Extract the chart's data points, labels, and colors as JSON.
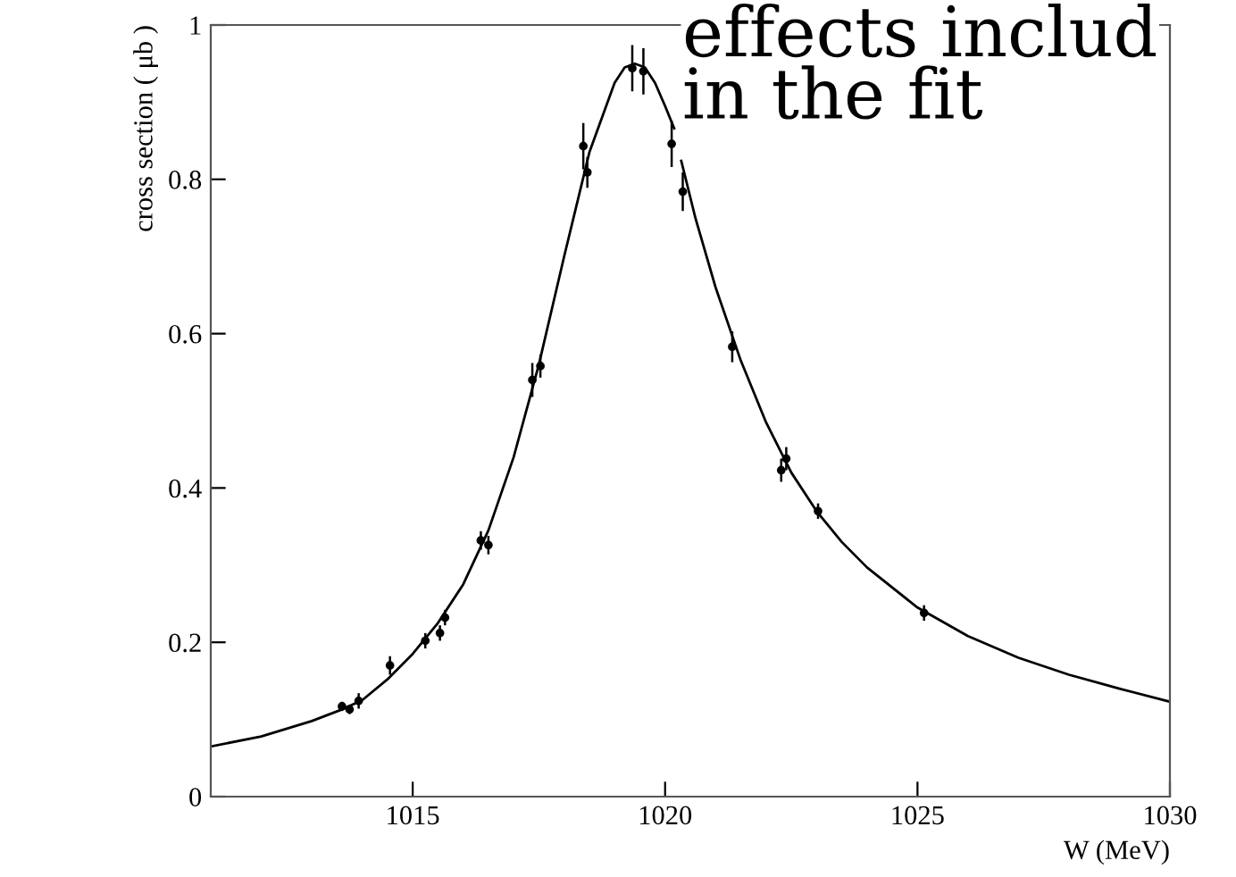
{
  "chart_data": {
    "type": "scatter",
    "xlabel": "W (MeV)",
    "ylabel": "cross section ( μb )",
    "xlim": [
      1011,
      1030
    ],
    "xticks": [
      1015,
      1020,
      1025,
      1030
    ],
    "ylim": [
      0,
      1
    ],
    "yticks": [
      0,
      {
        "value": 0.2,
        "label": "0.2"
      },
      {
        "value": 0.4,
        "label": "0.4"
      },
      {
        "value": 0.6,
        "label": "0.6"
      },
      {
        "value": 0.8,
        "label": "0.8"
      },
      1
    ],
    "grid": false,
    "legend": false,
    "marker": "circle",
    "annotations": [
      "effects includ\nin the fit"
    ],
    "series": [
      {
        "color": "#000000",
        "x": [
          1013.6,
          1013.75,
          1013.93,
          1014.55,
          1015.25,
          1015.54,
          1015.64,
          1016.35,
          1016.5,
          1017.37,
          1017.53,
          1018.38,
          1018.46,
          1019.35,
          1019.57,
          1020.13,
          1020.35,
          1021.33,
          1022.3,
          1022.4,
          1023.03,
          1025.13
        ],
        "values": [
          0.117,
          0.113,
          0.124,
          0.17,
          0.202,
          0.212,
          0.232,
          0.332,
          0.326,
          0.54,
          0.558,
          0.843,
          0.809,
          0.944,
          0.94,
          0.846,
          0.784,
          0.583,
          0.423,
          0.438,
          0.37,
          0.238
        ],
        "errors": [
          0.006,
          0.006,
          0.01,
          0.012,
          0.01,
          0.01,
          0.01,
          0.012,
          0.012,
          0.022,
          0.015,
          0.03,
          0.02,
          0.03,
          0.03,
          0.03,
          0.025,
          0.02,
          0.015,
          0.015,
          0.01,
          0.01
        ]
      },
      {
        "type": "line",
        "color": "#000000",
        "line_style": "solid",
        "marker": "none",
        "x": [
          1011,
          1012,
          1013,
          1013.6,
          1014,
          1014.5,
          1015,
          1015.5,
          1016,
          1016.5,
          1017,
          1017.5,
          1018,
          1018.5,
          1019,
          1019.2,
          1019.4,
          1019.6,
          1019.8,
          1020,
          1020.18,
          1020.25,
          1020.32,
          1020.6,
          1021,
          1021.5,
          1022,
          1022.5,
          1023,
          1023.5,
          1024,
          1025,
          1026,
          1027,
          1028,
          1029,
          1030
        ],
        "values": [
          0.065,
          0.078,
          0.098,
          0.113,
          0.125,
          0.152,
          0.185,
          0.225,
          0.275,
          0.345,
          0.44,
          0.56,
          0.7,
          0.835,
          0.925,
          0.945,
          0.95,
          0.945,
          0.925,
          0.895,
          0.866,
          null,
          0.824,
          0.75,
          0.66,
          0.565,
          0.485,
          0.42,
          0.37,
          0.33,
          0.297,
          0.245,
          0.208,
          0.18,
          0.158,
          0.14,
          0.123
        ]
      }
    ]
  }
}
